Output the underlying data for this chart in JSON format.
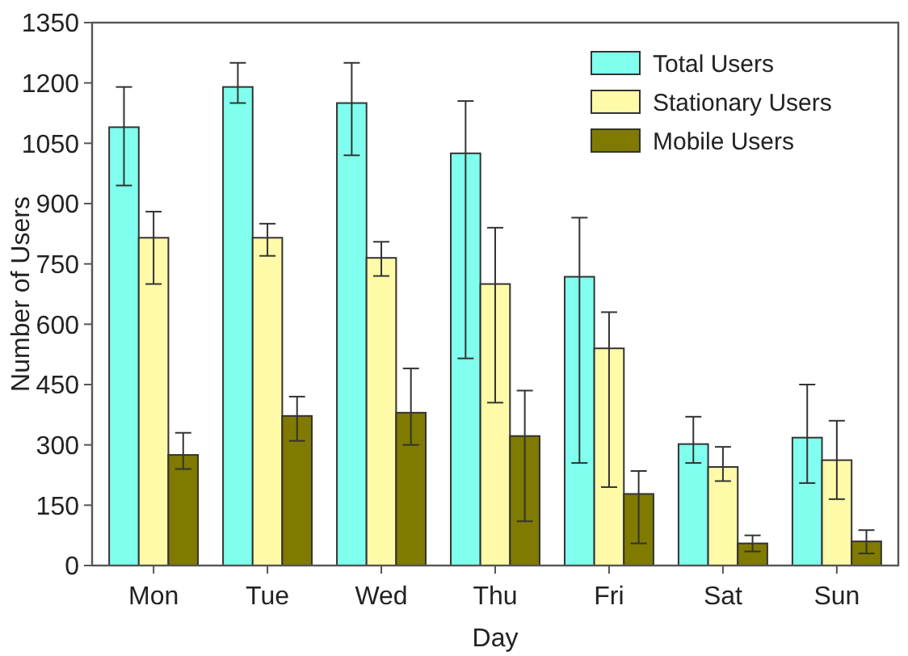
{
  "chart_data": {
    "type": "bar",
    "xlabel": "Day",
    "ylabel": "Number of Users",
    "categories": [
      "Mon",
      "Tue",
      "Wed",
      "Thu",
      "Fri",
      "Sat",
      "Sun"
    ],
    "series": [
      {
        "name": "Total Users",
        "color": "#80ffee",
        "values": [
          1090,
          1190,
          1150,
          1025,
          718,
          302,
          318
        ],
        "errors": [
          [
            945,
            1190
          ],
          [
            1150,
            1250
          ],
          [
            1020,
            1250
          ],
          [
            515,
            1155
          ],
          [
            255,
            865
          ],
          [
            255,
            370
          ],
          [
            205,
            450
          ]
        ]
      },
      {
        "name": "Stationary Users",
        "color": "#fffaa8",
        "values": [
          815,
          815,
          765,
          700,
          540,
          245,
          262
        ],
        "errors": [
          [
            700,
            880
          ],
          [
            770,
            850
          ],
          [
            720,
            805
          ],
          [
            405,
            840
          ],
          [
            195,
            630
          ],
          [
            210,
            295
          ],
          [
            165,
            360
          ]
        ]
      },
      {
        "name": "Mobile Users",
        "color": "#807a00",
        "values": [
          275,
          372,
          380,
          322,
          178,
          55,
          60
        ],
        "errors": [
          [
            240,
            330
          ],
          [
            310,
            420
          ],
          [
            300,
            490
          ],
          [
            110,
            435
          ],
          [
            55,
            235
          ],
          [
            35,
            75
          ],
          [
            30,
            88
          ]
        ]
      }
    ],
    "ylim": [
      0,
      1350
    ],
    "yticks": [
      0,
      150,
      300,
      450,
      600,
      750,
      900,
      1050,
      1200,
      1350
    ],
    "grid": false,
    "legend": "top right"
  }
}
